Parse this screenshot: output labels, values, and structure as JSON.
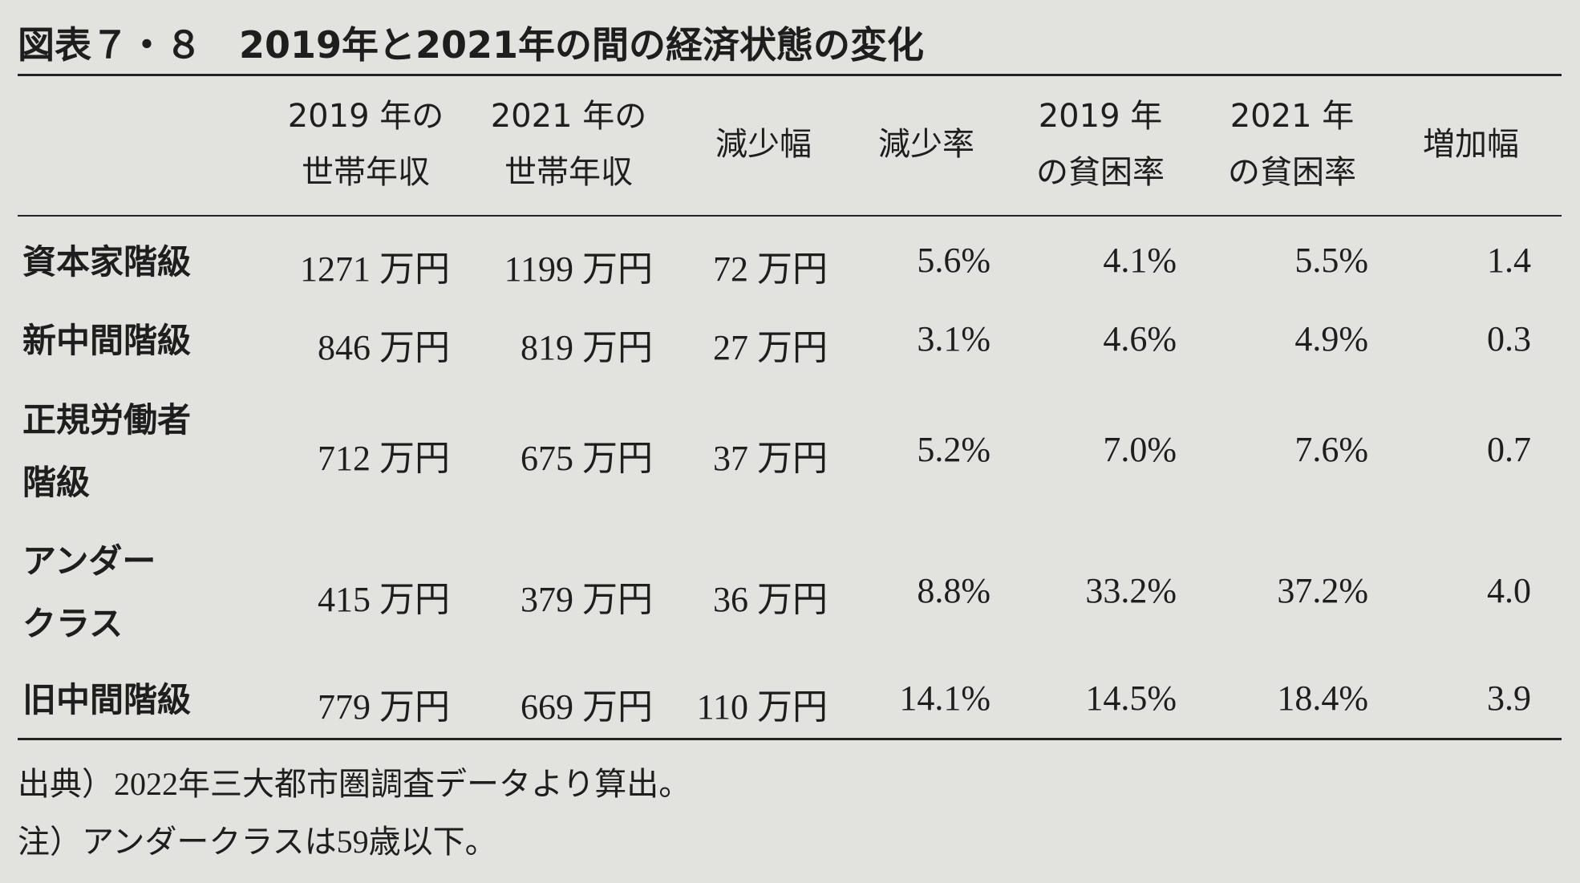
{
  "title": "図表７・８　2019年と2021年の間の経済状態の変化",
  "table": {
    "headers": [
      [
        "2019 年の",
        "世帯年収"
      ],
      [
        "2021 年の",
        "世帯年収"
      ],
      [
        "減少幅"
      ],
      [
        "減少率"
      ],
      [
        "2019 年",
        "の貧困率"
      ],
      [
        "2021 年",
        "の貧困率"
      ],
      [
        "増加幅"
      ]
    ],
    "rows": [
      {
        "label": [
          "資本家階級"
        ],
        "cells": [
          "1271 万円",
          "1199 万円",
          "72 万円",
          "5.6%",
          "4.1%",
          "5.5%",
          "1.4"
        ]
      },
      {
        "label": [
          "新中間階級"
        ],
        "cells": [
          "846 万円",
          "819 万円",
          "27 万円",
          "3.1%",
          "4.6%",
          "4.9%",
          "0.3"
        ]
      },
      {
        "label": [
          "正規労働者",
          "階級"
        ],
        "cells": [
          "712 万円",
          "675 万円",
          "37 万円",
          "5.2%",
          "7.0%",
          "7.6%",
          "0.7"
        ]
      },
      {
        "label": [
          "アンダー",
          "クラス"
        ],
        "cells": [
          "415 万円",
          "379 万円",
          "36 万円",
          "8.8%",
          "33.2%",
          "37.2%",
          "4.0"
        ]
      },
      {
        "label": [
          "旧中間階級"
        ],
        "cells": [
          "779 万円",
          "669 万円",
          "110 万円",
          "14.1%",
          "14.5%",
          "18.4%",
          "3.9"
        ]
      }
    ]
  },
  "notes": [
    "出典）2022年三大都市圏調査データより算出。",
    "注）アンダークラスは59歳以下。"
  ]
}
